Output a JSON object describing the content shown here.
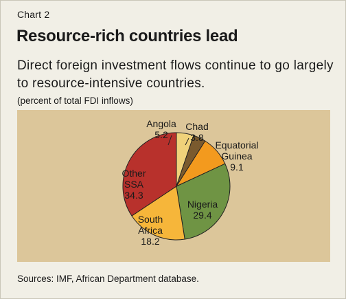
{
  "header": {
    "chart_number": "Chart 2",
    "title": "Resource-rich countries lead",
    "subtitle": "Direct foreign investment flows continue to go largely to resource-intensive countries.",
    "units": "(percent of total FDI inflows)"
  },
  "footer": {
    "source": "Sources: IMF, African Department database."
  },
  "chart_data": {
    "type": "pie",
    "title": "Resource-rich countries lead",
    "units": "(percent of total FDI inflows)",
    "slices": [
      {
        "label_lines": [
          "Angola"
        ],
        "value": 5.2,
        "color": "#f0d27a"
      },
      {
        "label_lines": [
          "Chad"
        ],
        "value": 3.8,
        "color": "#7a5a2e"
      },
      {
        "label_lines": [
          "Equatorial",
          "Guinea"
        ],
        "value": 9.1,
        "color": "#f39a1e"
      },
      {
        "label_lines": [
          "Nigeria"
        ],
        "value": 29.4,
        "color": "#6f9444"
      },
      {
        "label_lines": [
          "South",
          "Africa"
        ],
        "value": 18.2,
        "color": "#f6b63a"
      },
      {
        "label_lines": [
          "Other",
          "SSA"
        ],
        "value": 34.3,
        "color": "#b8312c"
      }
    ]
  }
}
